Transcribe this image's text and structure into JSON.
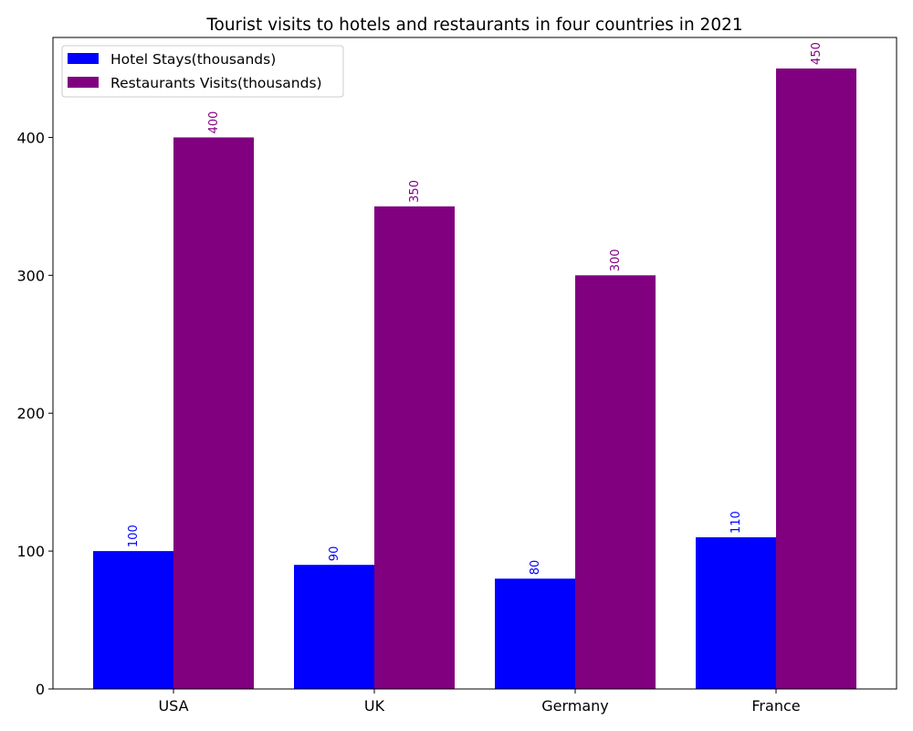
{
  "chart_data": {
    "type": "bar",
    "title": "Tourist visits to hotels and restaurants in four countries in 2021",
    "xlabel": "",
    "ylabel": "",
    "categories": [
      "USA",
      "UK",
      "Germany",
      "France"
    ],
    "series": [
      {
        "name": "Hotel Stays(thousands)",
        "values": [
          100,
          90,
          80,
          110
        ],
        "color": "#0000ff"
      },
      {
        "name": "Restaurants Visits(thousands)",
        "values": [
          400,
          350,
          300,
          450
        ],
        "color": "#800080"
      }
    ],
    "ylim": [
      0,
      472.5
    ],
    "yticks": [
      0,
      100,
      200,
      300,
      400
    ],
    "grid": false,
    "legend_position": "top-left",
    "data_labels": true
  }
}
